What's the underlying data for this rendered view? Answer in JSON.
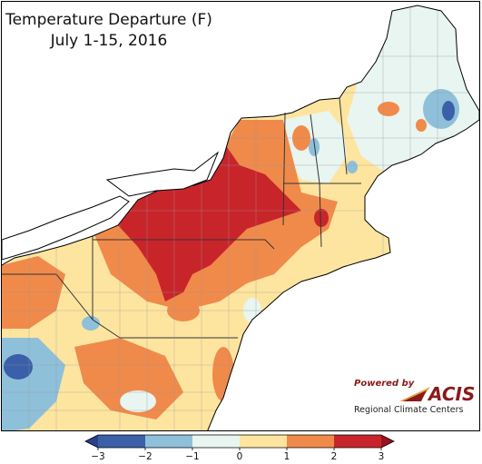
{
  "title": {
    "line1": "Temperature Departure (F)",
    "line2": "July 1-15, 2016"
  },
  "colorbar": {
    "ticks": [
      "−3",
      "−2",
      "−1",
      "0",
      "1",
      "2",
      "3"
    ],
    "bins": [
      {
        "from": -3,
        "to": -2,
        "color": "#3b5fa8"
      },
      {
        "from": -2,
        "to": -1,
        "color": "#8fc0da"
      },
      {
        "from": -1,
        "to": 0,
        "color": "#e8f5f0"
      },
      {
        "from": 0,
        "to": 1,
        "color": "#fde5a0"
      },
      {
        "from": 1,
        "to": 2,
        "color": "#f08a4b"
      },
      {
        "from": 2,
        "to": 3,
        "color": "#c8252b"
      }
    ],
    "under_color": "#2b3f8f",
    "over_color": "#9a1020"
  },
  "logo": {
    "powered_by": "Powered by",
    "brand": "ACIS",
    "subtitle": "Regional Climate Centers",
    "accent_colors": [
      "#e8a040",
      "#8b1a1a"
    ]
  },
  "map_colors": {
    "lakes_ocean": "#ffffff",
    "county_lines": "#9a9a9a",
    "state_lines": "#333333"
  }
}
